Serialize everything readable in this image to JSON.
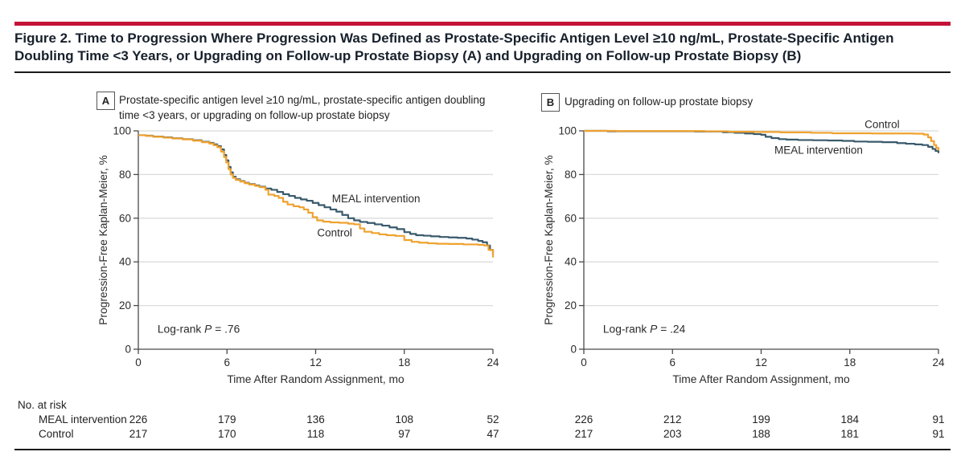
{
  "figure": {
    "title": "Figure 2. Time to Progression Where Progression Was Defined as Prostate-Specific Antigen Level ≥10 ng/mL, Prostate-Specific Antigen Doubling Time <3 Years, or Upgrading on Follow-up Prostate Biopsy (A) and Upgrading on Follow-up Prostate Biopsy (B)"
  },
  "colors": {
    "accent_rule": "#C41338",
    "meal": "#3A5A6C",
    "control": "#EFA22E",
    "grid": "#DBDBDB",
    "axis": "#4a4a4a",
    "text": "#2b2b2b"
  },
  "chart_data": [
    {
      "type": "line",
      "panel_letter": "A",
      "caption": "Prostate-specific antigen level ≥10 ng/mL, prostate-specific antigen doubling time <3 years, or upgrading on follow-up prostate biopsy",
      "xlabel": "Time After Random Assignment, mo",
      "ylabel": "Progression-Free Kaplan-Meier, %",
      "xlim": [
        0,
        24
      ],
      "ylim": [
        0,
        100
      ],
      "xticks": [
        0,
        6,
        12,
        18,
        24
      ],
      "yticks": [
        0,
        20,
        40,
        60,
        80,
        100
      ],
      "logrank": {
        "before": "Log-rank ",
        "italic": "P",
        "after": " = .76",
        "x": 1.3,
        "y": 9
      },
      "series": [
        {
          "name": "MEAL intervention",
          "color_key": "meal",
          "points": [
            [
              0,
              98
            ],
            [
              0.5,
              97.8
            ],
            [
              1,
              97.4
            ],
            [
              1.7,
              97
            ],
            [
              2.3,
              96.6
            ],
            [
              3,
              96.2
            ],
            [
              3.7,
              95.7
            ],
            [
              4.3,
              95
            ],
            [
              4.8,
              94.5
            ],
            [
              5.1,
              93.8
            ],
            [
              5.35,
              93
            ],
            [
              5.6,
              91.5
            ],
            [
              5.8,
              89
            ],
            [
              5.95,
              86.5
            ],
            [
              6.1,
              83.5
            ],
            [
              6.25,
              81
            ],
            [
              6.4,
              79
            ],
            [
              6.6,
              77.8
            ],
            [
              6.9,
              77
            ],
            [
              7.2,
              76.2
            ],
            [
              7.5,
              75.6
            ],
            [
              7.9,
              75
            ],
            [
              8.2,
              74.4
            ],
            [
              8.6,
              73.6
            ],
            [
              9,
              73
            ],
            [
              9.4,
              72
            ],
            [
              9.8,
              71
            ],
            [
              10.2,
              70.2
            ],
            [
              10.6,
              69.3
            ],
            [
              11,
              68.6
            ],
            [
              11.4,
              68
            ],
            [
              11.8,
              67
            ],
            [
              12.2,
              66
            ],
            [
              12.6,
              65
            ],
            [
              13,
              64
            ],
            [
              13.4,
              63
            ],
            [
              13.8,
              61.5
            ],
            [
              14.2,
              60
            ],
            [
              14.6,
              59
            ],
            [
              15,
              58.3
            ],
            [
              15.5,
              57.8
            ],
            [
              16,
              57.2
            ],
            [
              16.5,
              56.6
            ],
            [
              17,
              55.8
            ],
            [
              17.5,
              55
            ],
            [
              18,
              53.6
            ],
            [
              18.4,
              52.8
            ],
            [
              18.8,
              52.2
            ],
            [
              19.3,
              52
            ],
            [
              19.8,
              51.7
            ],
            [
              20.4,
              51.4
            ],
            [
              21,
              51.2
            ],
            [
              21.6,
              51
            ],
            [
              22.2,
              50.7
            ],
            [
              22.6,
              50.2
            ],
            [
              23,
              49.6
            ],
            [
              23.3,
              49
            ],
            [
              23.6,
              47.5
            ],
            [
              23.8,
              45.5
            ],
            [
              24,
              43.5
            ]
          ]
        },
        {
          "name": "Control",
          "color_key": "control",
          "points": [
            [
              0,
              98
            ],
            [
              0.5,
              97.7
            ],
            [
              1,
              97.3
            ],
            [
              1.7,
              96.9
            ],
            [
              2.3,
              96.5
            ],
            [
              3,
              96.1
            ],
            [
              3.7,
              95.5
            ],
            [
              4.3,
              94.8
            ],
            [
              4.8,
              94.2
            ],
            [
              5.1,
              93.4
            ],
            [
              5.35,
              92.5
            ],
            [
              5.6,
              90.5
            ],
            [
              5.8,
              88
            ],
            [
              5.95,
              85.5
            ],
            [
              6.1,
              82.5
            ],
            [
              6.25,
              80
            ],
            [
              6.4,
              78.5
            ],
            [
              6.6,
              77.5
            ],
            [
              6.9,
              76.8
            ],
            [
              7.2,
              76
            ],
            [
              7.5,
              75.4
            ],
            [
              7.9,
              74.8
            ],
            [
              8.2,
              74.2
            ],
            [
              8.6,
              73
            ],
            [
              8.8,
              70.8
            ],
            [
              9.2,
              70.2
            ],
            [
              9.5,
              69.3
            ],
            [
              9.8,
              67.5
            ],
            [
              10.1,
              66.3
            ],
            [
              10.5,
              65.5
            ],
            [
              10.9,
              65
            ],
            [
              11.2,
              64
            ],
            [
              11.5,
              62.5
            ],
            [
              11.8,
              60.5
            ],
            [
              12.1,
              59
            ],
            [
              12.5,
              58.4
            ],
            [
              13,
              58.1
            ],
            [
              13.6,
              57.9
            ],
            [
              14.2,
              57.5
            ],
            [
              14.6,
              57.2
            ],
            [
              15,
              55.3
            ],
            [
              15.3,
              53.8
            ],
            [
              15.8,
              53.2
            ],
            [
              16.3,
              52.6
            ],
            [
              16.8,
              52.2
            ],
            [
              17.4,
              51.9
            ],
            [
              18,
              50
            ],
            [
              18.5,
              49.2
            ],
            [
              19,
              48.8
            ],
            [
              19.6,
              48.5
            ],
            [
              20.2,
              48.3
            ],
            [
              21,
              48.2
            ],
            [
              22,
              48
            ],
            [
              23,
              47.8
            ],
            [
              23.4,
              47.5
            ],
            [
              23.7,
              45.5
            ],
            [
              24,
              42
            ]
          ]
        }
      ],
      "series_labels": [
        {
          "text": "MEAL intervention",
          "x": 13.1,
          "y": 68.8
        },
        {
          "text": "Control",
          "x": 12.1,
          "y": 53.2
        }
      ]
    },
    {
      "type": "line",
      "panel_letter": "B",
      "caption": "Upgrading on follow-up prostate biopsy",
      "xlabel": "Time After Random Assignment, mo",
      "ylabel": "Progression-Free Kaplan-Meier, %",
      "xlim": [
        0,
        24
      ],
      "ylim": [
        0,
        100
      ],
      "xticks": [
        0,
        6,
        12,
        18,
        24
      ],
      "yticks": [
        0,
        20,
        40,
        60,
        80,
        100
      ],
      "logrank": {
        "before": "Log-rank ",
        "italic": "P",
        "after": " = .24",
        "x": 1.3,
        "y": 9
      },
      "series": [
        {
          "name": "MEAL intervention",
          "color_key": "meal",
          "points": [
            [
              0,
              100
            ],
            [
              1.6,
              99.8
            ],
            [
              7.5,
              99.7
            ],
            [
              9.4,
              99.4
            ],
            [
              10.2,
              99.1
            ],
            [
              10.9,
              98.8
            ],
            [
              11.5,
              98.5
            ],
            [
              12,
              98.2
            ],
            [
              12.3,
              97.3
            ],
            [
              12.7,
              96.7
            ],
            [
              13.2,
              96.2
            ],
            [
              13.7,
              96
            ],
            [
              14.5,
              95.8
            ],
            [
              15.5,
              95.7
            ],
            [
              16.5,
              95.6
            ],
            [
              17.5,
              95.4
            ],
            [
              18.3,
              95.1
            ],
            [
              19.2,
              95
            ],
            [
              20.2,
              94.8
            ],
            [
              21.2,
              94.4
            ],
            [
              21.8,
              94.1
            ],
            [
              22.4,
              93.8
            ],
            [
              22.9,
              93.5
            ],
            [
              23.3,
              92.7
            ],
            [
              23.6,
              91.7
            ],
            [
              23.8,
              90.8
            ],
            [
              24,
              89.8
            ]
          ]
        },
        {
          "name": "Control",
          "color_key": "control",
          "points": [
            [
              0,
              100
            ],
            [
              2.2,
              99.9
            ],
            [
              8.2,
              99.8
            ],
            [
              9.8,
              99.6
            ],
            [
              11.5,
              99.5
            ],
            [
              13.3,
              99.3
            ],
            [
              15.4,
              99.1
            ],
            [
              16.8,
              98.9
            ],
            [
              19.5,
              98.8
            ],
            [
              22.3,
              98.7
            ],
            [
              23,
              98.3
            ],
            [
              23.3,
              97
            ],
            [
              23.5,
              95.3
            ],
            [
              23.7,
              93.5
            ],
            [
              23.85,
              92.2
            ],
            [
              24,
              91
            ]
          ]
        }
      ],
      "series_labels": [
        {
          "text": "Control",
          "x": 19.0,
          "y": 102.8
        },
        {
          "text": "MEAL intervention",
          "x": 12.9,
          "y": 91.0
        }
      ]
    }
  ],
  "risk_table": {
    "heading": "No. at risk",
    "times": [
      0,
      6,
      12,
      18,
      24
    ],
    "rows": [
      {
        "label": "MEAL intervention",
        "panelA": [
          226,
          179,
          136,
          108,
          52
        ],
        "panelB": [
          226,
          212,
          199,
          184,
          91
        ]
      },
      {
        "label": "Control",
        "panelA": [
          217,
          170,
          118,
          97,
          47
        ],
        "panelB": [
          217,
          203,
          188,
          181,
          91
        ]
      }
    ]
  }
}
